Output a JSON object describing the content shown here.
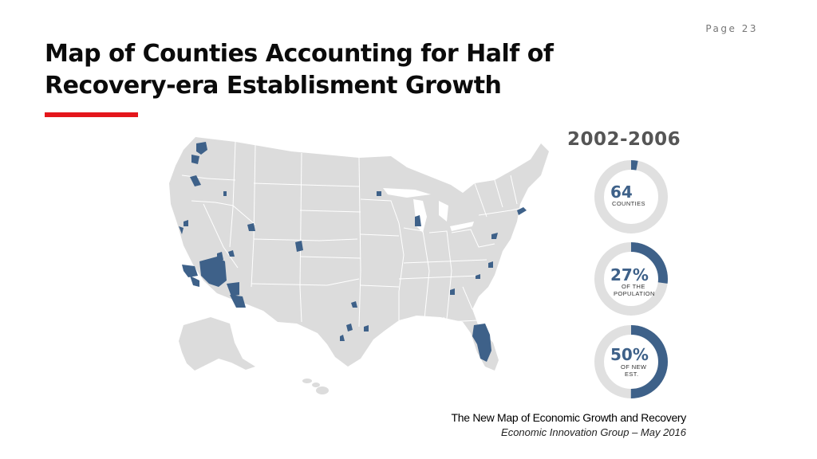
{
  "page_label": "Page 23",
  "title_lines": [
    "Map of Counties Accounting for Half of",
    "Recovery-era Establisment Growth"
  ],
  "accent_color": "#e4161b",
  "map": {
    "subject": "United States counties",
    "base_fill": "#dcdcdc",
    "border_color": "#ffffff",
    "highlight_color": "#3e6189"
  },
  "stats": {
    "period": "2002-2006",
    "counties": {
      "value": "64",
      "label": "COUNTIES",
      "fraction": 0.03
    },
    "population": {
      "value": "27%",
      "label_lines": [
        "OF THE",
        "POPULATION"
      ],
      "fraction": 0.27
    },
    "establishments": {
      "value": "50%",
      "label_lines": [
        "OF NEW",
        "EST."
      ],
      "fraction": 0.5
    },
    "ring_color": "#e0e0e0",
    "fill_color": "#3e6189"
  },
  "source": {
    "title": "The New Map of Economic Growth and Recovery",
    "credit": "Economic Innovation Group – May 2016"
  }
}
